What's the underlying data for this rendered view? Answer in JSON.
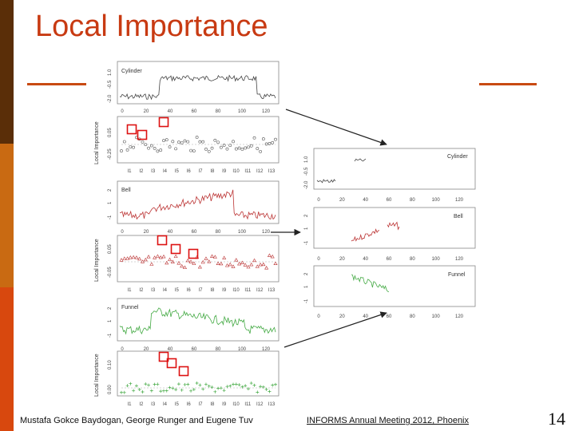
{
  "slide": {
    "title": "Local Importance",
    "footer_authors": "Mustafa Gokce Baydogan, George Runger and Eugene Tuv",
    "footer_event": "INFORMS Annual Meeting 2012, Phoenix",
    "page_number": "14"
  },
  "colors": {
    "accent": "#c83a12",
    "bar_dark": "#5a2e08",
    "bar_mid": "#c96a12",
    "bar_light": "#d8480e",
    "highlight_box": "#dd1111",
    "cylinder_series": "#444444",
    "bell_series": "#bb3333",
    "funnel_series": "#44aa44"
  },
  "figure": {
    "series_labels": [
      "Cylinder",
      "Bell",
      "Funnel"
    ],
    "importance_axis_label": "Local Importance",
    "series_x_ticks": [
      "0",
      "20",
      "40",
      "60",
      "80",
      "100",
      "120"
    ],
    "right_x_ticks": [
      "0",
      "20",
      "40",
      "60",
      "80",
      "100",
      "120"
    ],
    "cylinder_y_ticks": [
      "-2.0",
      "-0.5",
      "1.0"
    ],
    "bell_y_ticks": [
      "-1",
      "1",
      "2"
    ],
    "funnel_y_ticks": [
      "-1",
      "1",
      "2"
    ],
    "cyl_imp_y_ticks": [
      "-0.25",
      "0.05"
    ],
    "bell_imp_y_ticks": [
      "-0.05",
      "0.05"
    ],
    "fun_imp_y_ticks": [
      "0.00",
      "0.10"
    ],
    "cyl_imp_x_ticks": [
      "I1",
      "I2",
      "I3",
      "I4",
      "I5",
      "I6",
      "I7",
      "I8",
      "I9",
      "I10",
      "I11",
      "I12",
      "I13"
    ],
    "bell_imp_x_ticks": [
      "I1",
      "I2",
      "I3",
      "I4",
      "I5",
      "I6",
      "I7",
      "I8",
      "I9",
      "I10",
      "I11",
      "I12",
      "I13"
    ],
    "fun_imp_x_ticks": [
      "I1",
      "I2",
      "I3",
      "I4",
      "I5",
      "I6",
      "I7",
      "I8",
      "I9",
      "I10",
      "I11",
      "I12",
      "I13"
    ]
  }
}
